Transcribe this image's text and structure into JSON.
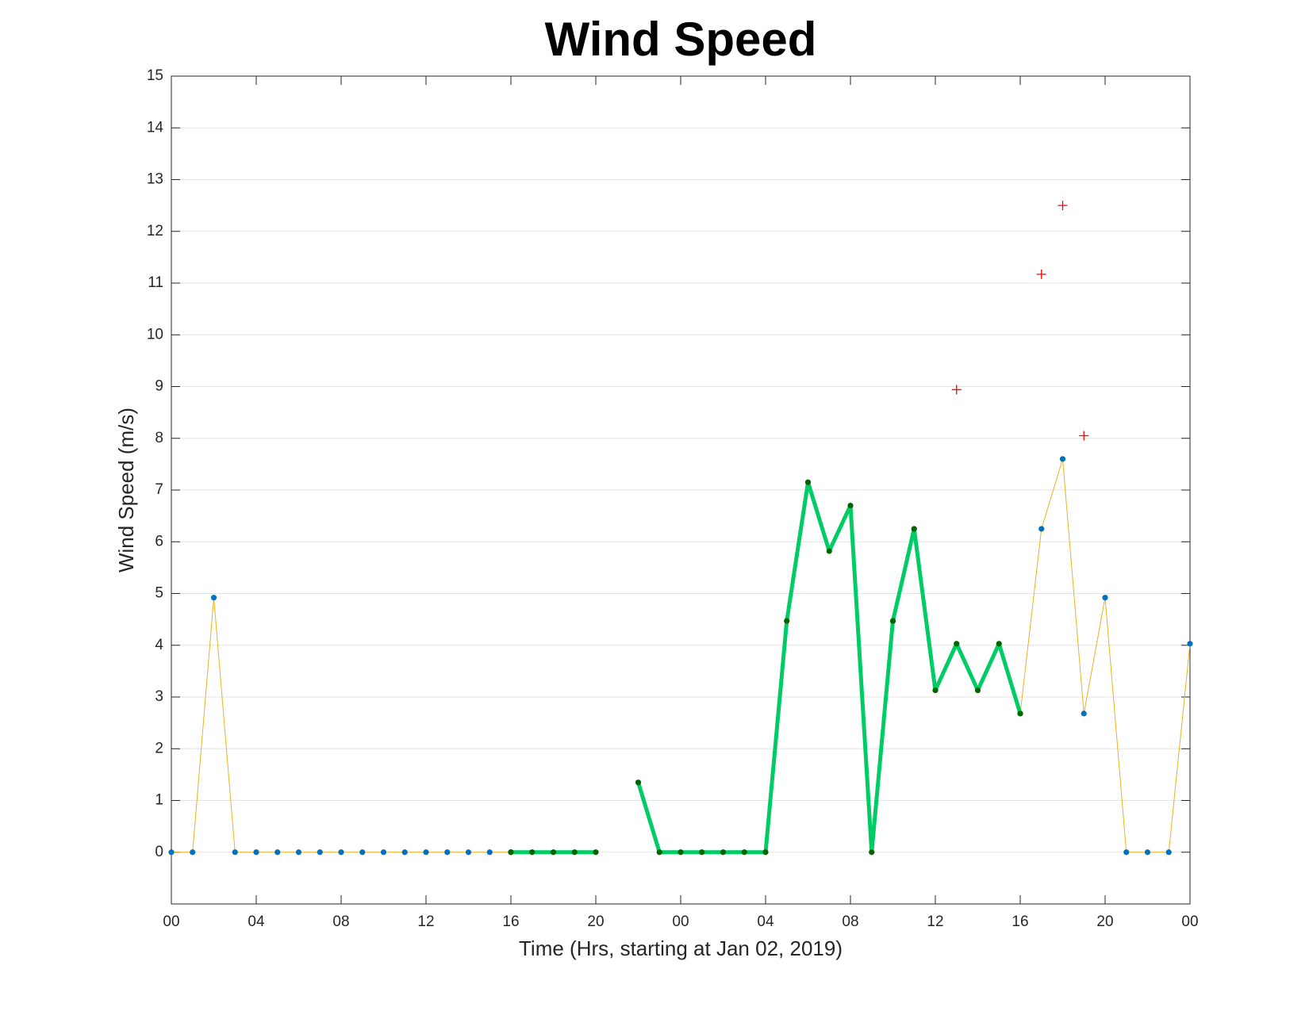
{
  "chart_data": {
    "type": "line",
    "title": "Wind Speed",
    "x_label": "Time (Hrs, starting at Jan 02, 2019)",
    "y_label": "Wind Speed (m/s)",
    "xlim": [
      0,
      48
    ],
    "ylim": [
      -1,
      15
    ],
    "xticks": [
      {
        "value": 0,
        "label": "00"
      },
      {
        "value": 4,
        "label": "04"
      },
      {
        "value": 8,
        "label": "08"
      },
      {
        "value": 12,
        "label": "12"
      },
      {
        "value": 16,
        "label": "16"
      },
      {
        "value": 20,
        "label": "20"
      },
      {
        "value": 24,
        "label": "00"
      },
      {
        "value": 28,
        "label": "04"
      },
      {
        "value": 32,
        "label": "08"
      },
      {
        "value": 36,
        "label": "12"
      },
      {
        "value": 40,
        "label": "16"
      },
      {
        "value": 44,
        "label": "20"
      },
      {
        "value": 48,
        "label": "00"
      }
    ],
    "yticks": [
      0,
      1,
      2,
      3,
      4,
      5,
      6,
      7,
      8,
      9,
      10,
      11,
      12,
      13,
      14,
      15
    ],
    "grid": "y",
    "series": [
      {
        "color": "#edb120",
        "marker": "dot",
        "marker_color": "#0072bd",
        "line": true,
        "line_width": 1,
        "x": [
          0,
          1,
          2,
          3,
          4,
          5,
          6,
          7,
          8,
          9,
          10,
          11,
          12,
          13,
          14,
          15,
          16,
          17,
          18,
          19,
          20,
          21,
          22,
          23,
          24,
          25,
          26,
          27,
          28,
          29,
          30,
          31,
          32,
          33,
          34,
          35,
          36,
          37,
          38,
          39,
          40,
          41,
          42,
          43,
          44,
          45,
          46,
          47,
          48
        ],
        "values": [
          0,
          0,
          4.92,
          0,
          0,
          0,
          0,
          0,
          0,
          0,
          0,
          0,
          0,
          0,
          0,
          0,
          0,
          null,
          null,
          null,
          null,
          null,
          null,
          null,
          null,
          null,
          null,
          null,
          null,
          null,
          null,
          null,
          null,
          null,
          null,
          null,
          null,
          null,
          null,
          null,
          2.68,
          6.25,
          7.6,
          2.68,
          4.92,
          0,
          0,
          0,
          4.03
        ]
      },
      {
        "color": "#00cc66",
        "marker": "dot",
        "marker_color": "#006400",
        "line": true,
        "line_width": 5,
        "x": [
          16,
          17,
          18,
          19,
          20,
          21,
          22,
          23,
          24,
          25,
          26,
          27,
          28,
          29,
          30,
          31,
          32,
          33,
          34,
          35,
          36,
          37,
          38,
          39,
          40
        ],
        "values": [
          0,
          0,
          0,
          0,
          0,
          null,
          1.35,
          0,
          0,
          0,
          0,
          0,
          0,
          4.47,
          7.15,
          5.82,
          6.7,
          0,
          4.47,
          6.25,
          3.13,
          4.03,
          3.13,
          4.03,
          2.68
        ]
      },
      {
        "color": "#ff0000",
        "marker": "plus",
        "marker_color": "#ff0000",
        "line": false,
        "x": [
          37,
          41,
          42,
          43
        ],
        "values": [
          8.94,
          11.17,
          12.5,
          8.05
        ]
      }
    ]
  }
}
